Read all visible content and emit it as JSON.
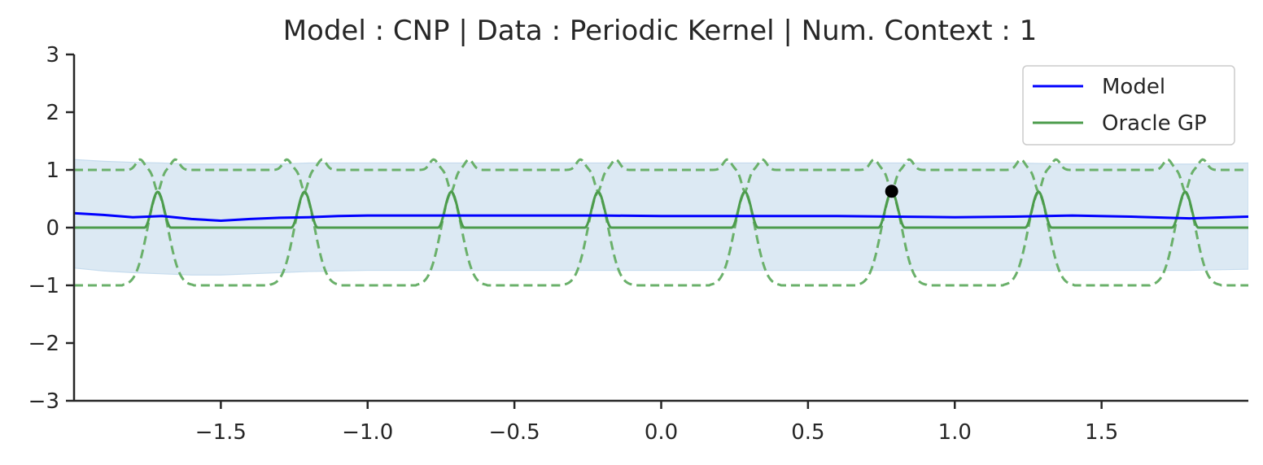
{
  "chart_data": {
    "type": "line",
    "title": "Model : CNP | Data : Periodic Kernel | Num. Context : 1",
    "xlim": [
      -2.0,
      2.0
    ],
    "ylim": [
      -3,
      3
    ],
    "x_ticks": [
      -1.5,
      -1.0,
      -0.5,
      0.0,
      0.5,
      1.0,
      1.5
    ],
    "x_tick_labels": [
      "−1.5",
      "−1.0",
      "−0.5",
      "0.0",
      "0.5",
      "1.0",
      "1.5"
    ],
    "y_ticks": [
      3,
      2,
      1,
      0,
      -1,
      -2,
      -3
    ],
    "y_tick_labels": [
      "3",
      "2",
      "1",
      "0",
      "−1",
      "−2",
      "−3"
    ],
    "legend_position": "top-right",
    "colors": {
      "model": "#0000ff",
      "model_band": "#dce9f3",
      "model_band_edge": "#c6dcee",
      "oracle": "#4c9c4c",
      "oracle_dashed": "#6ab06a",
      "context_point": "#000000",
      "axis": "#262626"
    },
    "series": [
      {
        "name": "Model",
        "style": "solid",
        "x": [
          -2.0,
          -1.9,
          -1.8,
          -1.7,
          -1.6,
          -1.5,
          -1.4,
          -1.3,
          -1.2,
          -1.1,
          -1.0,
          -0.9,
          -0.8,
          -0.6,
          -0.4,
          -0.2,
          0.0,
          0.2,
          0.4,
          0.6,
          0.8,
          1.0,
          1.2,
          1.4,
          1.6,
          1.8,
          2.0
        ],
        "y": [
          0.25,
          0.22,
          0.18,
          0.2,
          0.15,
          0.12,
          0.15,
          0.17,
          0.18,
          0.2,
          0.21,
          0.21,
          0.21,
          0.21,
          0.21,
          0.21,
          0.2,
          0.2,
          0.2,
          0.2,
          0.19,
          0.18,
          0.19,
          0.21,
          0.19,
          0.16,
          0.19
        ],
        "band_upper": [
          1.18,
          1.15,
          1.13,
          1.12,
          1.1,
          1.1,
          1.1,
          1.1,
          1.12,
          1.12,
          1.12,
          1.12,
          1.12,
          1.12,
          1.12,
          1.12,
          1.12,
          1.12,
          1.12,
          1.12,
          1.12,
          1.12,
          1.12,
          1.1,
          1.1,
          1.1,
          1.12
        ],
        "band_lower": [
          -0.7,
          -0.75,
          -0.78,
          -0.8,
          -0.82,
          -0.82,
          -0.8,
          -0.78,
          -0.76,
          -0.75,
          -0.74,
          -0.74,
          -0.74,
          -0.74,
          -0.74,
          -0.74,
          -0.74,
          -0.74,
          -0.74,
          -0.74,
          -0.74,
          -0.74,
          -0.74,
          -0.74,
          -0.74,
          -0.74,
          -0.72
        ]
      },
      {
        "name": "Oracle GP",
        "style": "solid",
        "period": 0.5,
        "peak_x": [
          -1.715,
          -1.215,
          -0.715,
          -0.215,
          0.285,
          0.785,
          1.285,
          1.785
        ],
        "peak_y": 0.62,
        "base_y": 0.0
      }
    ],
    "oracle_interval": {
      "style": "dashed",
      "upper_base": 1.0,
      "lower_base": -1.0,
      "crossing_y": 1.18
    },
    "context_points": [
      {
        "x": 0.785,
        "y": 0.63
      }
    ]
  }
}
